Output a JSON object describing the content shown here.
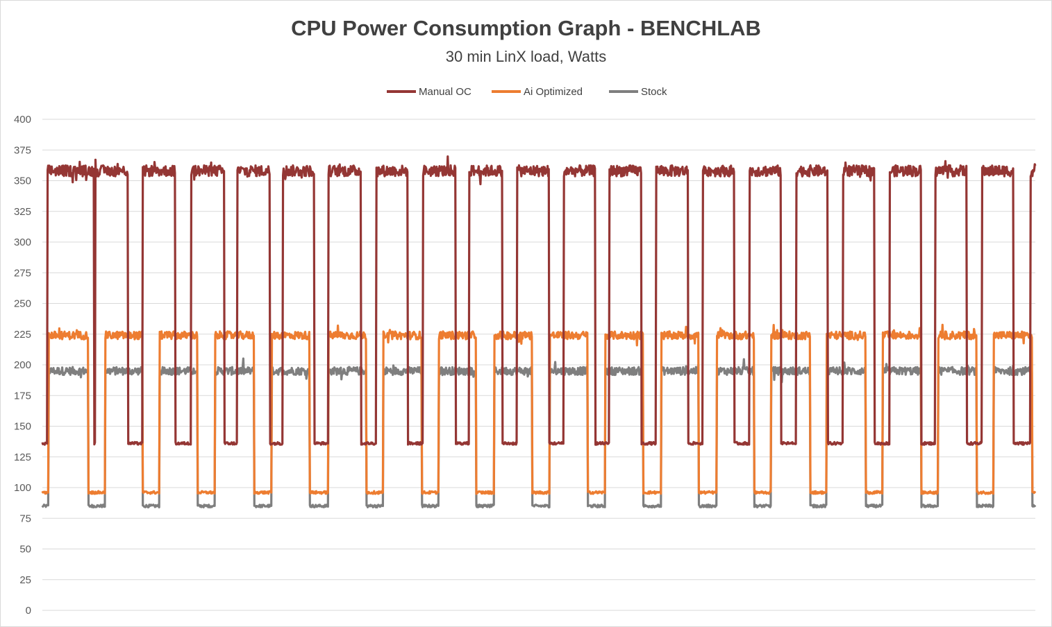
{
  "chart_data": {
    "type": "line",
    "title": "CPU Power Consumption Graph - BENCHLAB",
    "subtitle": "30 min LinX load, Watts",
    "ylim": [
      0,
      400
    ],
    "yticks": [
      0,
      25,
      50,
      75,
      100,
      125,
      150,
      175,
      200,
      225,
      250,
      275,
      300,
      325,
      350,
      375,
      400
    ],
    "grid": "horizontal",
    "legend_position": "top",
    "num_cycles": 21,
    "series": [
      {
        "name": "Manual OC",
        "color": "#943634",
        "high_w": 358,
        "low_w": 136,
        "high_windows": [
          [
            0.005,
            0.052
          ],
          [
            0.053,
            0.086
          ],
          [
            0.101,
            0.134
          ],
          [
            0.15,
            0.183
          ],
          [
            0.196,
            0.229
          ],
          [
            0.242,
            0.274
          ],
          [
            0.288,
            0.321
          ],
          [
            0.336,
            0.368
          ],
          [
            0.383,
            0.416
          ],
          [
            0.43,
            0.463
          ],
          [
            0.478,
            0.51
          ],
          [
            0.525,
            0.557
          ],
          [
            0.571,
            0.603
          ],
          [
            0.618,
            0.65
          ],
          [
            0.665,
            0.697
          ],
          [
            0.712,
            0.744
          ],
          [
            0.759,
            0.791
          ],
          [
            0.806,
            0.838
          ],
          [
            0.853,
            0.885
          ],
          [
            0.899,
            0.931
          ],
          [
            0.946,
            0.978
          ],
          [
            0.995,
            1.0
          ]
        ]
      },
      {
        "name": "Ai Optimized",
        "color": "#ED7D31",
        "high_w": 224,
        "low_w": 96,
        "high_windows": [
          [
            0.006,
            0.046
          ],
          [
            0.063,
            0.101
          ],
          [
            0.118,
            0.156
          ],
          [
            0.174,
            0.213
          ],
          [
            0.231,
            0.269
          ],
          [
            0.288,
            0.326
          ],
          [
            0.343,
            0.382
          ],
          [
            0.399,
            0.437
          ],
          [
            0.455,
            0.493
          ],
          [
            0.511,
            0.549
          ],
          [
            0.567,
            0.605
          ],
          [
            0.623,
            0.661
          ],
          [
            0.679,
            0.717
          ],
          [
            0.734,
            0.773
          ],
          [
            0.79,
            0.829
          ],
          [
            0.846,
            0.885
          ],
          [
            0.902,
            0.941
          ],
          [
            0.958,
            0.997
          ]
        ]
      },
      {
        "name": "Stock",
        "color": "#7F7F7F",
        "high_w": 195,
        "low_w": 85,
        "high_windows": [
          [
            0.006,
            0.046
          ],
          [
            0.063,
            0.101
          ],
          [
            0.118,
            0.156
          ],
          [
            0.174,
            0.213
          ],
          [
            0.231,
            0.269
          ],
          [
            0.288,
            0.326
          ],
          [
            0.343,
            0.382
          ],
          [
            0.399,
            0.437
          ],
          [
            0.455,
            0.493
          ],
          [
            0.511,
            0.549
          ],
          [
            0.567,
            0.605
          ],
          [
            0.623,
            0.661
          ],
          [
            0.679,
            0.717
          ],
          [
            0.734,
            0.773
          ],
          [
            0.79,
            0.829
          ],
          [
            0.846,
            0.885
          ],
          [
            0.902,
            0.941
          ],
          [
            0.958,
            0.997
          ]
        ]
      }
    ]
  }
}
